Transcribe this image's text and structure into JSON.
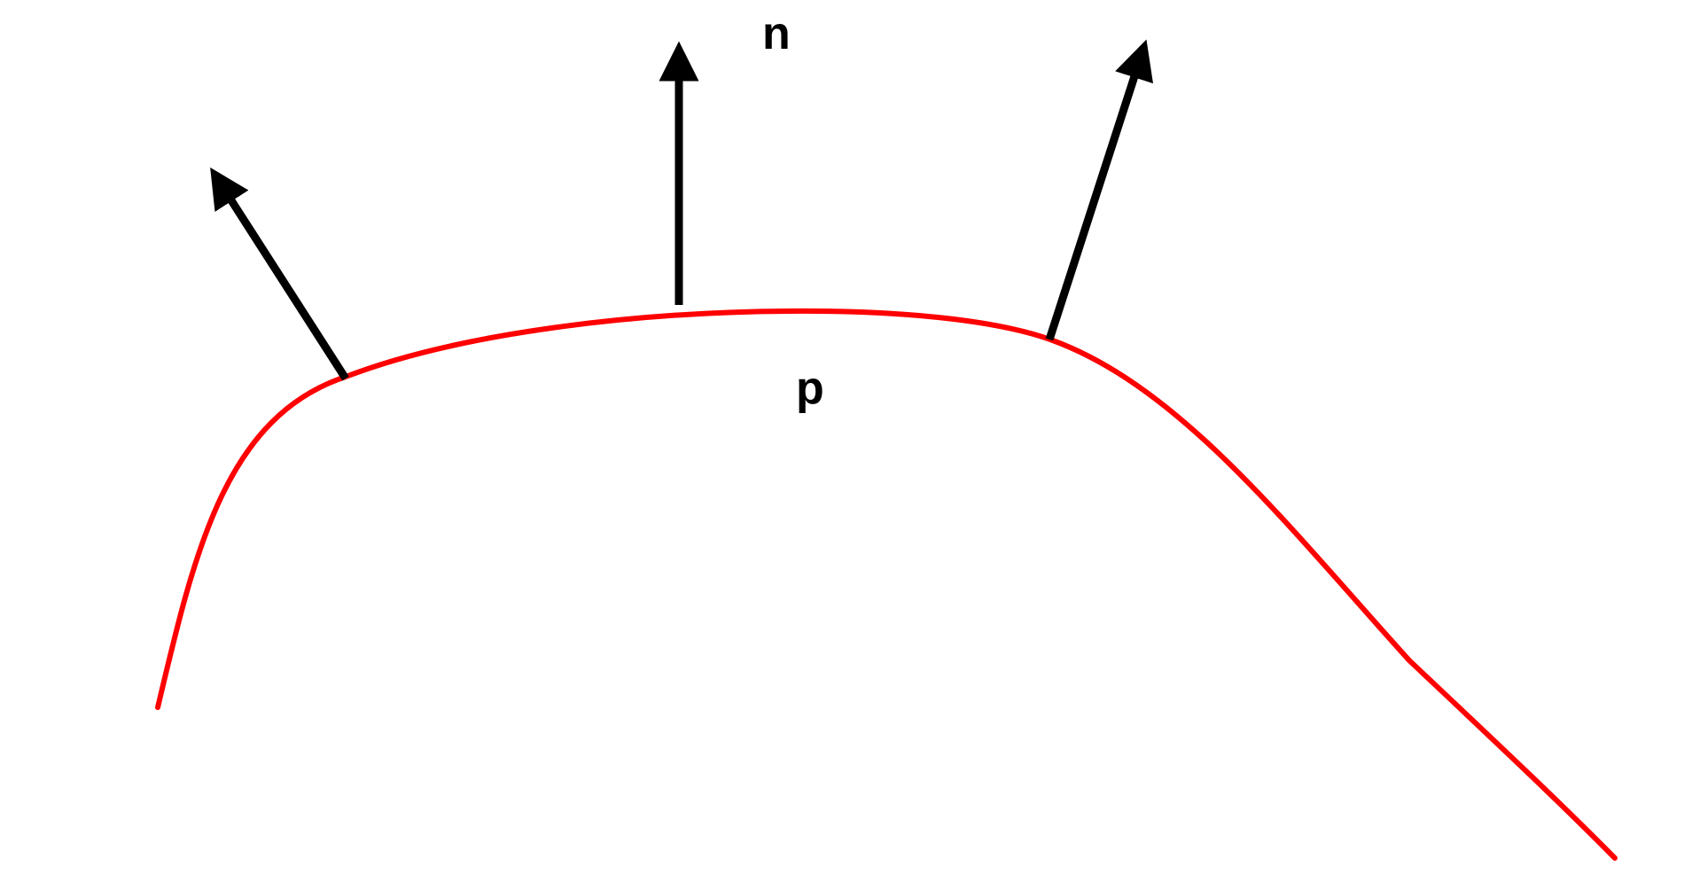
{
  "diagram": {
    "labels": {
      "normal": "n",
      "point": "p"
    },
    "colors": {
      "curve": "#ff0000",
      "arrows": "#000000",
      "background": "#ffffff"
    },
    "normal_vector_count": 3
  }
}
